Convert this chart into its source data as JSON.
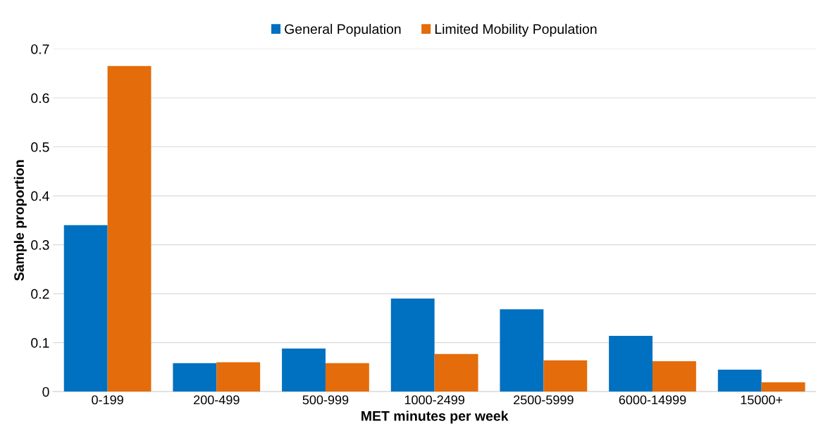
{
  "chart_data": {
    "type": "bar",
    "xlabel": "MET minutes per week",
    "ylabel": "Sample proportion",
    "categories": [
      "0-199",
      "200-499",
      "500-999",
      "1000-2499",
      "2500-5999",
      "6000-14999",
      "15000+"
    ],
    "series": [
      {
        "name": "General Population",
        "color": "#0070c0",
        "values": [
          0.34,
          0.058,
          0.088,
          0.19,
          0.168,
          0.114,
          0.045
        ]
      },
      {
        "name": "Limited Mobility Population",
        "color": "#e46c0a",
        "values": [
          0.665,
          0.06,
          0.058,
          0.077,
          0.064,
          0.062,
          0.019
        ]
      }
    ],
    "ylim": [
      0,
      0.7
    ],
    "yticks": [
      {
        "value": 0,
        "label": "0"
      },
      0.1,
      0.2,
      0.3,
      0.4,
      0.5,
      0.6,
      0.7
    ],
    "grid": "y",
    "legend": "top"
  }
}
